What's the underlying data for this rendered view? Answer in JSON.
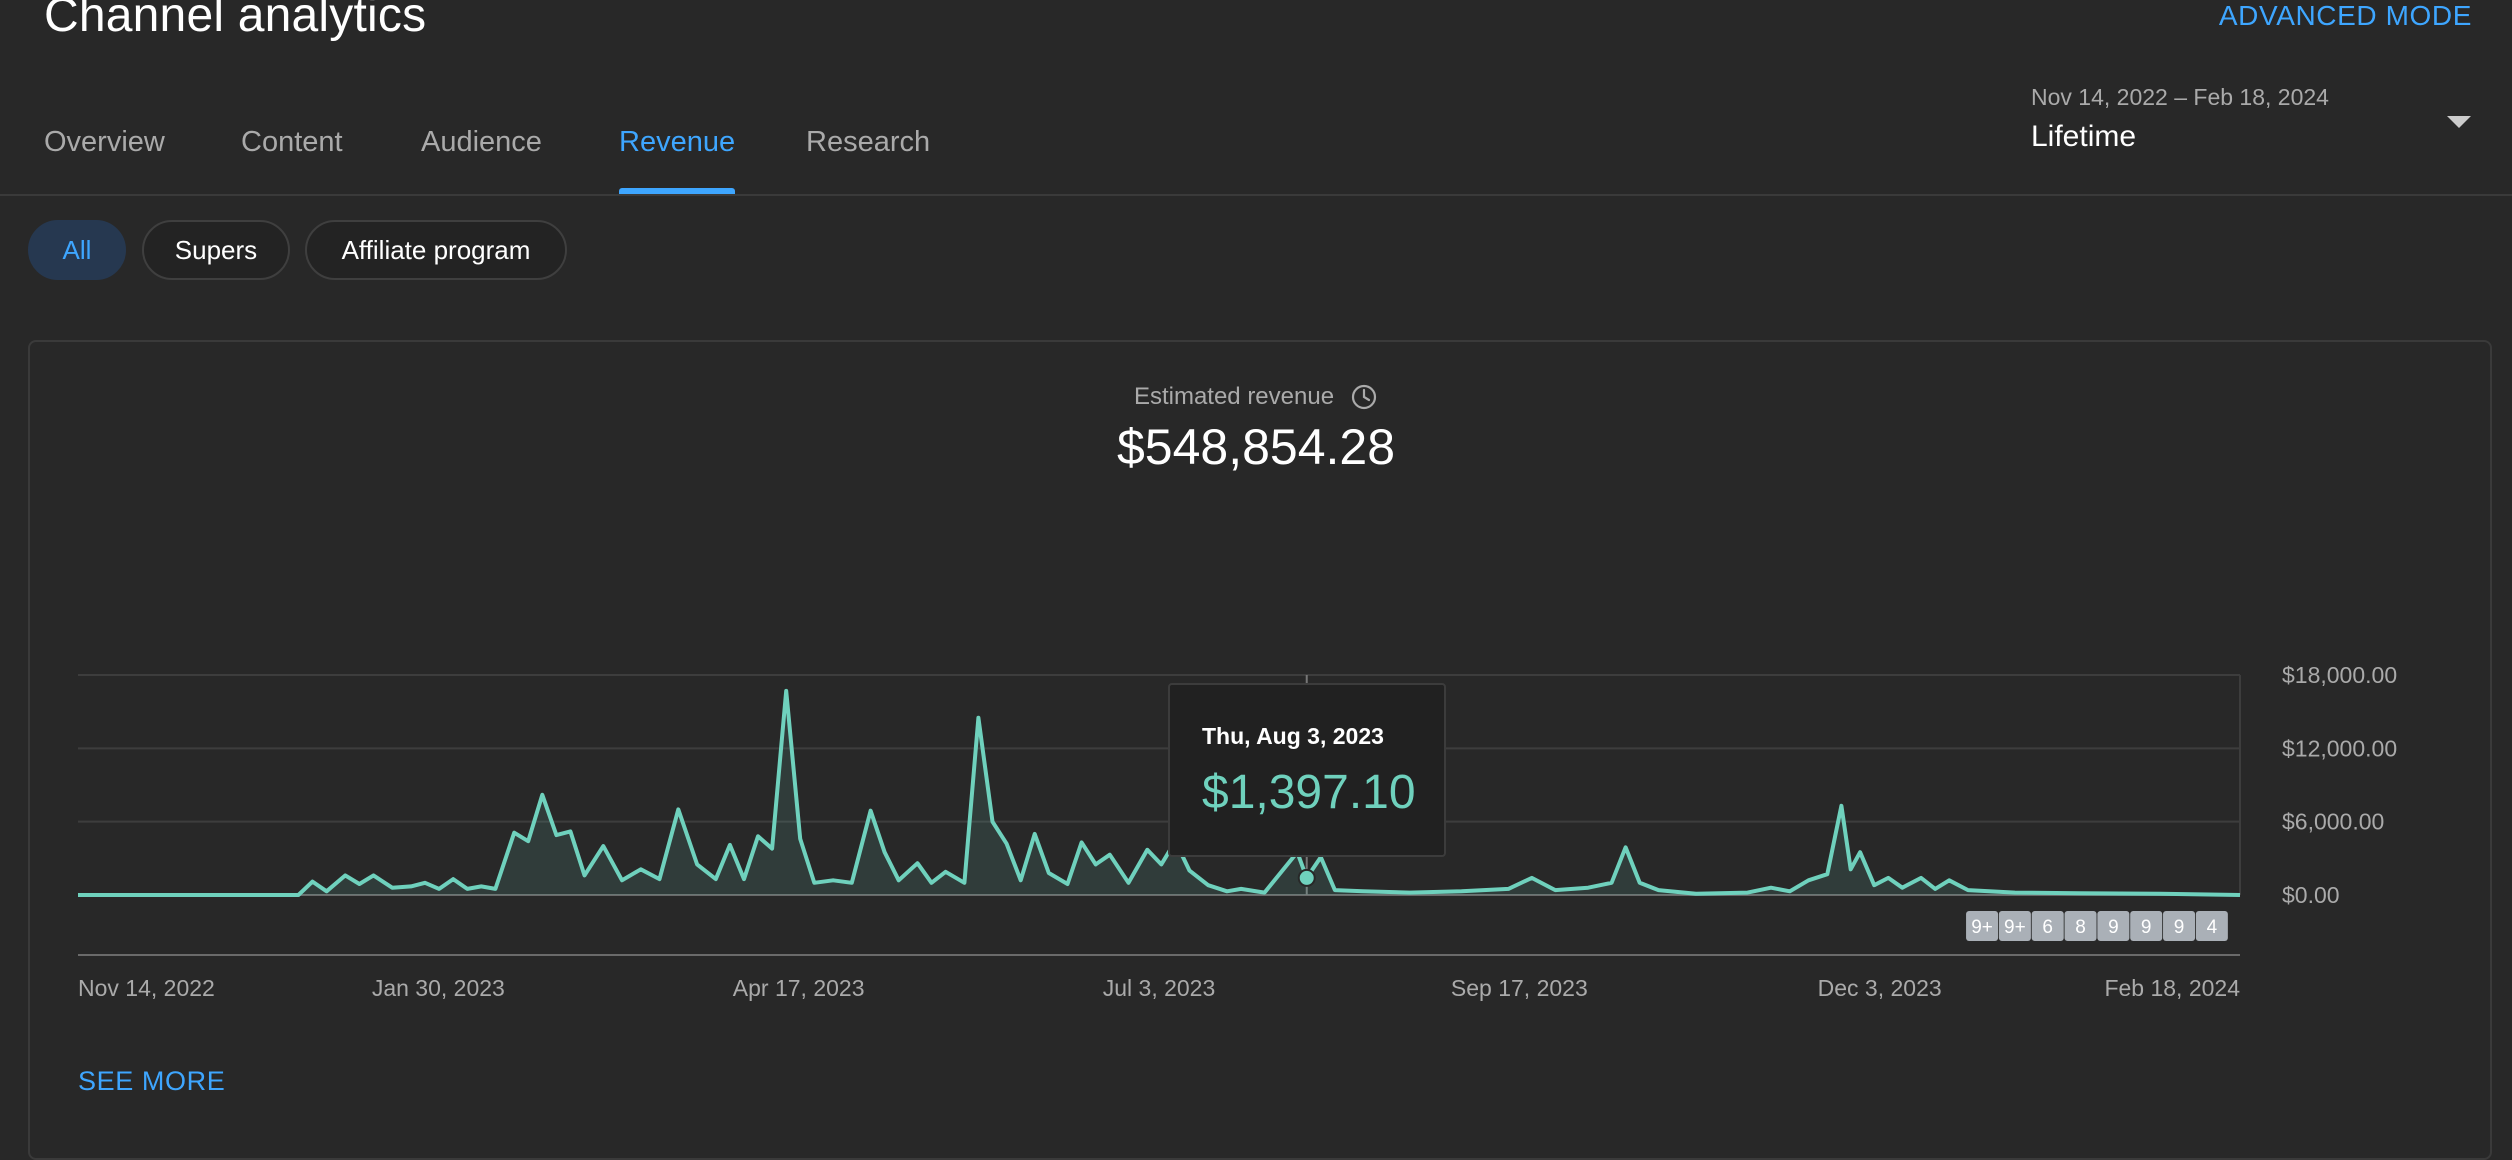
{
  "page": {
    "title": "Channel analytics",
    "advanced_mode_label": "ADVANCED MODE"
  },
  "tabs": [
    {
      "label": "Overview",
      "active": false
    },
    {
      "label": "Content",
      "active": false
    },
    {
      "label": "Audience",
      "active": false
    },
    {
      "label": "Revenue",
      "active": true
    },
    {
      "label": "Research",
      "active": false
    }
  ],
  "date_selector": {
    "range": "Nov 14, 2022 – Feb 18, 2024",
    "preset": "Lifetime",
    "icon": "chevron-down-icon"
  },
  "filters": [
    {
      "label": "All",
      "active": true
    },
    {
      "label": "Supers",
      "active": false
    },
    {
      "label": "Affiliate program",
      "active": false
    }
  ],
  "metric": {
    "label": "Estimated revenue",
    "icon": "clock-icon",
    "value": "$548,854.28"
  },
  "tooltip": {
    "date": "Thu, Aug 3, 2023",
    "value": "$1,397.10"
  },
  "see_more_label": "SEE MORE",
  "colors": {
    "background": "#282828",
    "accent": "#3ea6ff",
    "series": "#6fd1bd",
    "badge": "#aab0b7"
  },
  "chart_data": {
    "type": "area",
    "x_start": "Nov 14, 2022",
    "x_end": "Feb 18, 2024",
    "x_tick_labels": [
      "Nov 14, 2022",
      "Jan 30, 2023",
      "Apr 17, 2023",
      "Jul 3, 2023",
      "Sep 17, 2023",
      "Dec 3, 2023",
      "Feb 18, 2024"
    ],
    "y_tick_labels": [
      "$18,000.00",
      "$12,000.00",
      "$6,000.00",
      "$0.00"
    ],
    "ylim": [
      0,
      18000
    ],
    "y_ticks": [
      18000,
      12000,
      6000,
      0
    ],
    "grid": true,
    "series": [
      {
        "values": [
          {
            "x": "2022-11-14",
            "y": 0
          },
          {
            "x": "2022-12-31",
            "y": 0
          },
          {
            "x": "2023-01-03",
            "y": 1100
          },
          {
            "x": "2023-01-06",
            "y": 300
          },
          {
            "x": "2023-01-10",
            "y": 1600
          },
          {
            "x": "2023-01-13",
            "y": 900
          },
          {
            "x": "2023-01-16",
            "y": 1600
          },
          {
            "x": "2023-01-20",
            "y": 600
          },
          {
            "x": "2023-01-24",
            "y": 700
          },
          {
            "x": "2023-01-27",
            "y": 1000
          },
          {
            "x": "2023-01-30",
            "y": 500
          },
          {
            "x": "2023-02-02",
            "y": 1300
          },
          {
            "x": "2023-02-05",
            "y": 500
          },
          {
            "x": "2023-02-08",
            "y": 700
          },
          {
            "x": "2023-02-11",
            "y": 500
          },
          {
            "x": "2023-02-15",
            "y": 5100
          },
          {
            "x": "2023-02-18",
            "y": 4400
          },
          {
            "x": "2023-02-21",
            "y": 8200
          },
          {
            "x": "2023-02-24",
            "y": 4900
          },
          {
            "x": "2023-02-27",
            "y": 5200
          },
          {
            "x": "2023-03-02",
            "y": 1600
          },
          {
            "x": "2023-03-06",
            "y": 4000
          },
          {
            "x": "2023-03-10",
            "y": 1200
          },
          {
            "x": "2023-03-14",
            "y": 2100
          },
          {
            "x": "2023-03-18",
            "y": 1300
          },
          {
            "x": "2023-03-22",
            "y": 7000
          },
          {
            "x": "2023-03-26",
            "y": 2500
          },
          {
            "x": "2023-03-30",
            "y": 1300
          },
          {
            "x": "2023-04-02",
            "y": 4100
          },
          {
            "x": "2023-04-05",
            "y": 1300
          },
          {
            "x": "2023-04-08",
            "y": 4800
          },
          {
            "x": "2023-04-11",
            "y": 3800
          },
          {
            "x": "2023-04-14",
            "y": 16700
          },
          {
            "x": "2023-04-17",
            "y": 4600
          },
          {
            "x": "2023-04-20",
            "y": 1000
          },
          {
            "x": "2023-04-24",
            "y": 1200
          },
          {
            "x": "2023-04-28",
            "y": 1000
          },
          {
            "x": "2023-05-02",
            "y": 6900
          },
          {
            "x": "2023-05-05",
            "y": 3500
          },
          {
            "x": "2023-05-08",
            "y": 1200
          },
          {
            "x": "2023-05-12",
            "y": 2600
          },
          {
            "x": "2023-05-15",
            "y": 1000
          },
          {
            "x": "2023-05-18",
            "y": 1900
          },
          {
            "x": "2023-05-22",
            "y": 1000
          },
          {
            "x": "2023-05-25",
            "y": 14500
          },
          {
            "x": "2023-05-28",
            "y": 6000
          },
          {
            "x": "2023-05-31",
            "y": 4200
          },
          {
            "x": "2023-06-03",
            "y": 1200
          },
          {
            "x": "2023-06-06",
            "y": 5000
          },
          {
            "x": "2023-06-09",
            "y": 1800
          },
          {
            "x": "2023-06-13",
            "y": 900
          },
          {
            "x": "2023-06-16",
            "y": 4300
          },
          {
            "x": "2023-06-19",
            "y": 2500
          },
          {
            "x": "2023-06-22",
            "y": 3300
          },
          {
            "x": "2023-06-26",
            "y": 1000
          },
          {
            "x": "2023-06-30",
            "y": 3700
          },
          {
            "x": "2023-07-03",
            "y": 2500
          },
          {
            "x": "2023-07-06",
            "y": 4400
          },
          {
            "x": "2023-07-09",
            "y": 2000
          },
          {
            "x": "2023-07-13",
            "y": 800
          },
          {
            "x": "2023-07-17",
            "y": 300
          },
          {
            "x": "2023-07-20",
            "y": 500
          },
          {
            "x": "2023-07-25",
            "y": 200
          },
          {
            "x": "2023-08-01",
            "y": 3500
          },
          {
            "x": "2023-08-03",
            "y": 1397.1
          },
          {
            "x": "2023-08-06",
            "y": 3100
          },
          {
            "x": "2023-08-09",
            "y": 400
          },
          {
            "x": "2023-08-15",
            "y": 300
          },
          {
            "x": "2023-08-25",
            "y": 200
          },
          {
            "x": "2023-09-05",
            "y": 300
          },
          {
            "x": "2023-09-15",
            "y": 500
          },
          {
            "x": "2023-09-20",
            "y": 1400
          },
          {
            "x": "2023-09-25",
            "y": 400
          },
          {
            "x": "2023-10-02",
            "y": 600
          },
          {
            "x": "2023-10-07",
            "y": 1000
          },
          {
            "x": "2023-10-10",
            "y": 3900
          },
          {
            "x": "2023-10-13",
            "y": 1000
          },
          {
            "x": "2023-10-17",
            "y": 400
          },
          {
            "x": "2023-10-25",
            "y": 100
          },
          {
            "x": "2023-11-05",
            "y": 200
          },
          {
            "x": "2023-11-10",
            "y": 600
          },
          {
            "x": "2023-11-14",
            "y": 300
          },
          {
            "x": "2023-11-18",
            "y": 1200
          },
          {
            "x": "2023-11-22",
            "y": 1700
          },
          {
            "x": "2023-11-25",
            "y": 7300
          },
          {
            "x": "2023-11-27",
            "y": 2100
          },
          {
            "x": "2023-11-29",
            "y": 3500
          },
          {
            "x": "2023-12-02",
            "y": 800
          },
          {
            "x": "2023-12-05",
            "y": 1400
          },
          {
            "x": "2023-12-08",
            "y": 600
          },
          {
            "x": "2023-12-12",
            "y": 1400
          },
          {
            "x": "2023-12-15",
            "y": 500
          },
          {
            "x": "2023-12-18",
            "y": 1200
          },
          {
            "x": "2023-12-22",
            "y": 400
          },
          {
            "x": "2024-01-01",
            "y": 200
          },
          {
            "x": "2024-01-15",
            "y": 150
          },
          {
            "x": "2024-02-01",
            "y": 100
          },
          {
            "x": "2024-02-18",
            "y": 0
          }
        ]
      }
    ],
    "highlight": {
      "x": "2023-08-03",
      "y": 1397.1
    },
    "annotation_badges": [
      {
        "x": "2023-12-25",
        "label": "9+"
      },
      {
        "x": "2024-01-01",
        "label": "9+"
      },
      {
        "x": "2024-01-08",
        "label": "6"
      },
      {
        "x": "2024-01-15",
        "label": "8"
      },
      {
        "x": "2024-01-22",
        "label": "9"
      },
      {
        "x": "2024-01-29",
        "label": "9"
      },
      {
        "x": "2024-02-05",
        "label": "9"
      },
      {
        "x": "2024-02-12",
        "label": "4"
      }
    ]
  }
}
